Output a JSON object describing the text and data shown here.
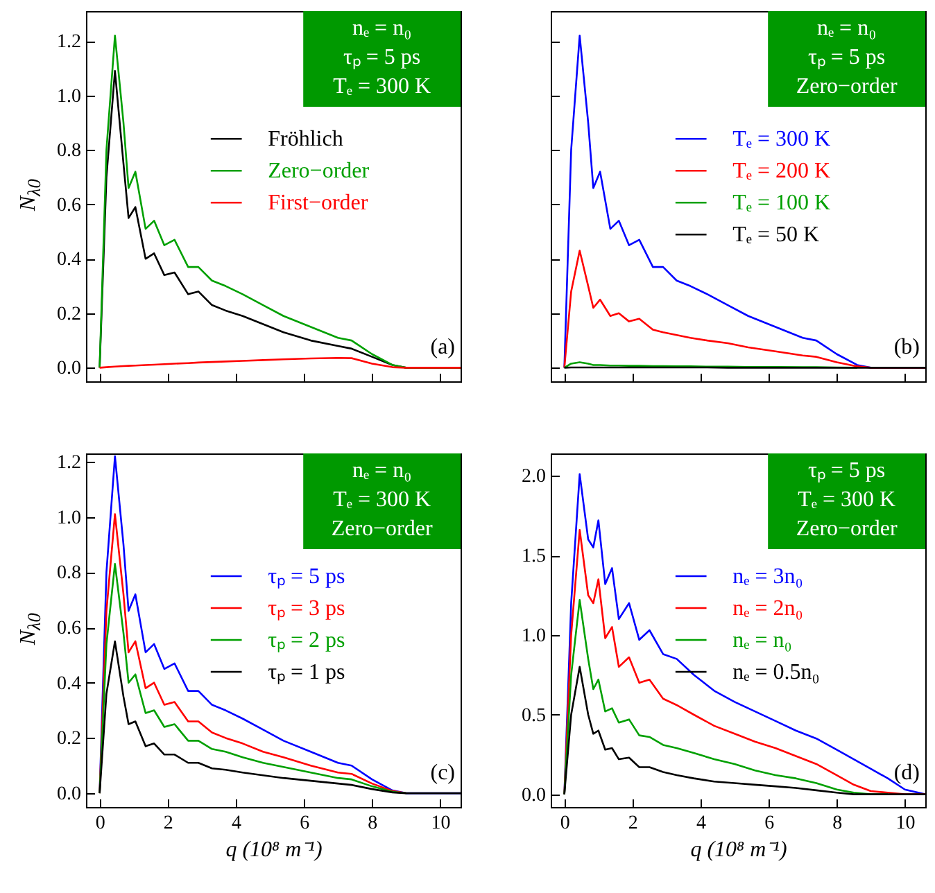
{
  "chart_data": [
    {
      "type": "line",
      "ylabel": "N$_{λ0}$",
      "x": [
        0,
        0.2,
        0.45,
        0.7,
        0.85,
        1.05,
        1.35,
        1.6,
        1.9,
        2.2,
        2.6,
        2.9,
        3.3,
        3.7,
        4.2,
        4.8,
        5.4,
        6.2,
        7,
        7.4,
        8,
        8.6,
        9,
        10,
        10.6
      ],
      "xlim": [
        -0.4,
        10.6
      ],
      "ylim": [
        -0.05,
        1.31
      ],
      "xticks": [
        0,
        2,
        4,
        6,
        8,
        10
      ],
      "yticks": [
        {
          "value": 0,
          "label": "0.0"
        },
        {
          "value": 0.2,
          "label": "0.2"
        },
        {
          "value": 0.4,
          "label": "0.4"
        },
        {
          "value": 0.6,
          "label": "0.6"
        },
        {
          "value": 0.8,
          "label": "0.8"
        },
        {
          "value": 1,
          "label": "1.0"
        },
        {
          "value": 1.2,
          "label": "1.2"
        }
      ],
      "tick_labels": "y",
      "legend": "right",
      "grid": false,
      "annotations": [
        "nₑ =  n₀",
        "τₚ =  5 ps",
        "Tₑ = 300 K",
        "(a)"
      ],
      "series": [
        {
          "name": "Fröhlich",
          "color": "#000000",
          "values": [
            0,
            0.7,
            1.09,
            0.75,
            0.55,
            0.59,
            0.4,
            0.42,
            0.34,
            0.35,
            0.27,
            0.28,
            0.23,
            0.21,
            0.19,
            0.16,
            0.13,
            0.1,
            0.08,
            0.07,
            0.04,
            0.01,
            0,
            0,
            0
          ]
        },
        {
          "name": "Zero−order",
          "color": "#00a000",
          "values": [
            0,
            0.8,
            1.22,
            0.9,
            0.66,
            0.72,
            0.51,
            0.54,
            0.45,
            0.47,
            0.37,
            0.37,
            0.32,
            0.3,
            0.27,
            0.23,
            0.19,
            0.15,
            0.11,
            0.1,
            0.05,
            0.01,
            0,
            0,
            0
          ]
        },
        {
          "name": "First−order",
          "color": "#ff0000",
          "values": [
            0,
            0.002,
            0.004,
            0.006,
            0.007,
            0.008,
            0.01,
            0.011,
            0.013,
            0.015,
            0.017,
            0.019,
            0.021,
            0.023,
            0.025,
            0.028,
            0.031,
            0.034,
            0.036,
            0.035,
            0.015,
            0.002,
            0,
            0,
            0
          ]
        }
      ]
    },
    {
      "type": "line",
      "x": [
        0,
        0.2,
        0.45,
        0.7,
        0.85,
        1.05,
        1.35,
        1.6,
        1.9,
        2.2,
        2.6,
        2.9,
        3.3,
        3.7,
        4.2,
        4.8,
        5.4,
        6.2,
        7,
        7.4,
        8,
        8.6,
        9,
        10,
        10.6
      ],
      "xlim": [
        -0.4,
        10.6
      ],
      "ylim": [
        -0.05,
        1.31
      ],
      "xticks": [
        0,
        2,
        4,
        6,
        8,
        10
      ],
      "yticks": [
        0,
        0.2,
        0.4,
        0.6,
        0.8,
        1,
        1.2
      ],
      "tick_labels": false,
      "legend": "right",
      "grid": false,
      "annotations": [
        "nₑ =  n₀",
        "τₚ =  5 ps",
        "Zero−order",
        "(b)"
      ],
      "series": [
        {
          "name": "Tₑ =  300 K",
          "color": "#0000ff",
          "values": [
            0,
            0.8,
            1.22,
            0.9,
            0.66,
            0.72,
            0.51,
            0.54,
            0.45,
            0.47,
            0.37,
            0.37,
            0.32,
            0.3,
            0.27,
            0.23,
            0.19,
            0.15,
            0.11,
            0.1,
            0.05,
            0.01,
            0,
            0,
            0
          ]
        },
        {
          "name": "Tₑ =  200 K",
          "color": "#ff0000",
          "values": [
            0,
            0.28,
            0.43,
            0.3,
            0.22,
            0.25,
            0.19,
            0.2,
            0.17,
            0.18,
            0.14,
            0.13,
            0.12,
            0.11,
            0.1,
            0.09,
            0.075,
            0.06,
            0.045,
            0.04,
            0.02,
            0.005,
            0,
            0,
            0
          ]
        },
        {
          "name": "Tₑ =  100 K",
          "color": "#00a000",
          "values": [
            0,
            0.015,
            0.02,
            0.015,
            0.01,
            0.01,
            0.008,
            0.008,
            0.007,
            0.007,
            0.006,
            0.006,
            0.005,
            0.005,
            0.004,
            0.004,
            0.003,
            0.003,
            0.002,
            0.002,
            0.001,
            0,
            null,
            null,
            null
          ]
        },
        {
          "name": "Tₑ =   50 K",
          "color": "#000000",
          "values": [
            0,
            0.001,
            0.001,
            0.001,
            0.001,
            0.001,
            0.001,
            0.001,
            0.001,
            0.001,
            0.001,
            0.001,
            0.001,
            0.001,
            0.001,
            0,
            0,
            0,
            0,
            0,
            0,
            0,
            0,
            0,
            0
          ]
        }
      ]
    },
    {
      "type": "line",
      "ylabel": "N$_{λ0}$",
      "xlabel": "q (10⁸ m⁻¹)",
      "x": [
        0,
        0.2,
        0.45,
        0.7,
        0.85,
        1.05,
        1.35,
        1.6,
        1.9,
        2.2,
        2.6,
        2.9,
        3.3,
        3.7,
        4.2,
        4.8,
        5.4,
        6.2,
        7,
        7.4,
        8,
        8.6,
        9,
        10,
        10.6
      ],
      "xlim": [
        -0.4,
        10.6
      ],
      "ylim": [
        -0.05,
        1.23
      ],
      "xticks": [
        0,
        2,
        4,
        6,
        8,
        10
      ],
      "yticks": [
        {
          "value": 0,
          "label": "0.0"
        },
        {
          "value": 0.2,
          "label": "0.2"
        },
        {
          "value": 0.4,
          "label": "0.4"
        },
        {
          "value": 0.6,
          "label": "0.6"
        },
        {
          "value": 0.8,
          "label": "0.8"
        },
        {
          "value": 1,
          "label": "1.0"
        },
        {
          "value": 1.2,
          "label": "1.2"
        }
      ],
      "legend": "right",
      "grid": false,
      "annotations": [
        "nₑ =  n₀",
        "Tₑ = 300 K",
        "Zero−order",
        "(c)"
      ],
      "series": [
        {
          "name": "τₚ =   5 ps",
          "color": "#0000ff",
          "values": [
            0,
            0.8,
            1.22,
            0.9,
            0.66,
            0.72,
            0.51,
            0.54,
            0.45,
            0.47,
            0.37,
            0.37,
            0.32,
            0.3,
            0.27,
            0.23,
            0.19,
            0.15,
            0.11,
            0.1,
            0.05,
            0.01,
            0,
            0,
            0
          ]
        },
        {
          "name": "τₚ =   3 ps",
          "color": "#ff0000",
          "values": [
            0,
            0.66,
            1.01,
            0.72,
            0.51,
            0.55,
            0.38,
            0.4,
            0.32,
            0.33,
            0.26,
            0.26,
            0.22,
            0.2,
            0.18,
            0.15,
            0.13,
            0.1,
            0.075,
            0.07,
            0.035,
            0.008,
            0,
            null,
            null
          ]
        },
        {
          "name": "τₚ =   2 ps",
          "color": "#00a000",
          "values": [
            0,
            0.54,
            0.83,
            0.58,
            0.4,
            0.43,
            0.29,
            0.3,
            0.24,
            0.25,
            0.19,
            0.19,
            0.16,
            0.15,
            0.13,
            0.11,
            0.095,
            0.075,
            0.055,
            0.05,
            0.025,
            0.005,
            0,
            null,
            null
          ]
        },
        {
          "name": "τₚ =   1 ps",
          "color": "#000000",
          "values": [
            0,
            0.36,
            0.55,
            0.35,
            0.25,
            0.26,
            0.17,
            0.18,
            0.14,
            0.14,
            0.11,
            0.11,
            0.09,
            0.085,
            0.075,
            0.065,
            0.055,
            0.045,
            0.035,
            0.03,
            0.015,
            0.003,
            0,
            0,
            0
          ]
        }
      ]
    },
    {
      "type": "line",
      "xlabel": "q (10⁸ m⁻¹)",
      "x": [
        0,
        0.2,
        0.45,
        0.7,
        0.85,
        1.0,
        1.2,
        1.4,
        1.6,
        1.9,
        2.2,
        2.5,
        2.9,
        3.3,
        3.8,
        4.4,
        5,
        5.6,
        6.2,
        6.8,
        7.4,
        8,
        8.5,
        9,
        9.5,
        10,
        10.6
      ],
      "xlim": [
        -0.4,
        10.6
      ],
      "ylim": [
        -0.08,
        2.14
      ],
      "xticks": [
        0,
        2,
        4,
        6,
        8,
        10
      ],
      "yticks": [
        {
          "value": 0,
          "label": "0.0"
        },
        {
          "value": 0.5,
          "label": "0.5"
        },
        {
          "value": 1,
          "label": "1.0"
        },
        {
          "value": 1.5,
          "label": "1.5"
        },
        {
          "value": 2,
          "label": "2.0"
        }
      ],
      "legend": "right",
      "grid": false,
      "annotations": [
        "τₚ = 5 ps",
        "Tₑ = 300 K",
        "Zero−order",
        "(d)"
      ],
      "series": [
        {
          "name": "nₑ =  3n₀",
          "color": "#0000ff",
          "values": [
            0,
            1.2,
            2.01,
            1.6,
            1.55,
            1.72,
            1.32,
            1.42,
            1.1,
            1.2,
            0.97,
            1.03,
            0.88,
            0.85,
            0.75,
            0.65,
            0.58,
            0.52,
            0.46,
            0.4,
            0.35,
            0.28,
            0.22,
            0.16,
            0.1,
            0.03,
            0
          ]
        },
        {
          "name": "nₑ =  2n₀",
          "color": "#ff0000",
          "values": [
            0,
            1.0,
            1.66,
            1.25,
            1.2,
            1.35,
            0.98,
            1.05,
            0.8,
            0.86,
            0.7,
            0.72,
            0.6,
            0.56,
            0.5,
            0.43,
            0.38,
            0.33,
            0.29,
            0.24,
            0.19,
            0.12,
            0.06,
            0.02,
            0.01,
            0,
            0
          ]
        },
        {
          "name": "nₑ =   n₀",
          "color": "#00a000",
          "values": [
            0,
            0.75,
            1.22,
            0.85,
            0.66,
            0.72,
            0.52,
            0.54,
            0.45,
            0.47,
            0.37,
            0.36,
            0.31,
            0.29,
            0.26,
            0.22,
            0.19,
            0.15,
            0.12,
            0.1,
            0.07,
            0.03,
            0.01,
            0,
            0,
            null,
            null
          ]
        },
        {
          "name": "nₑ =  0.5n₀",
          "color": "#000000",
          "values": [
            0,
            0.5,
            0.8,
            0.5,
            0.38,
            0.4,
            0.28,
            0.29,
            0.22,
            0.23,
            0.17,
            0.17,
            0.14,
            0.12,
            0.1,
            0.08,
            0.07,
            0.06,
            0.05,
            0.04,
            0.025,
            0.01,
            0,
            0,
            0,
            0,
            0
          ]
        }
      ]
    }
  ]
}
